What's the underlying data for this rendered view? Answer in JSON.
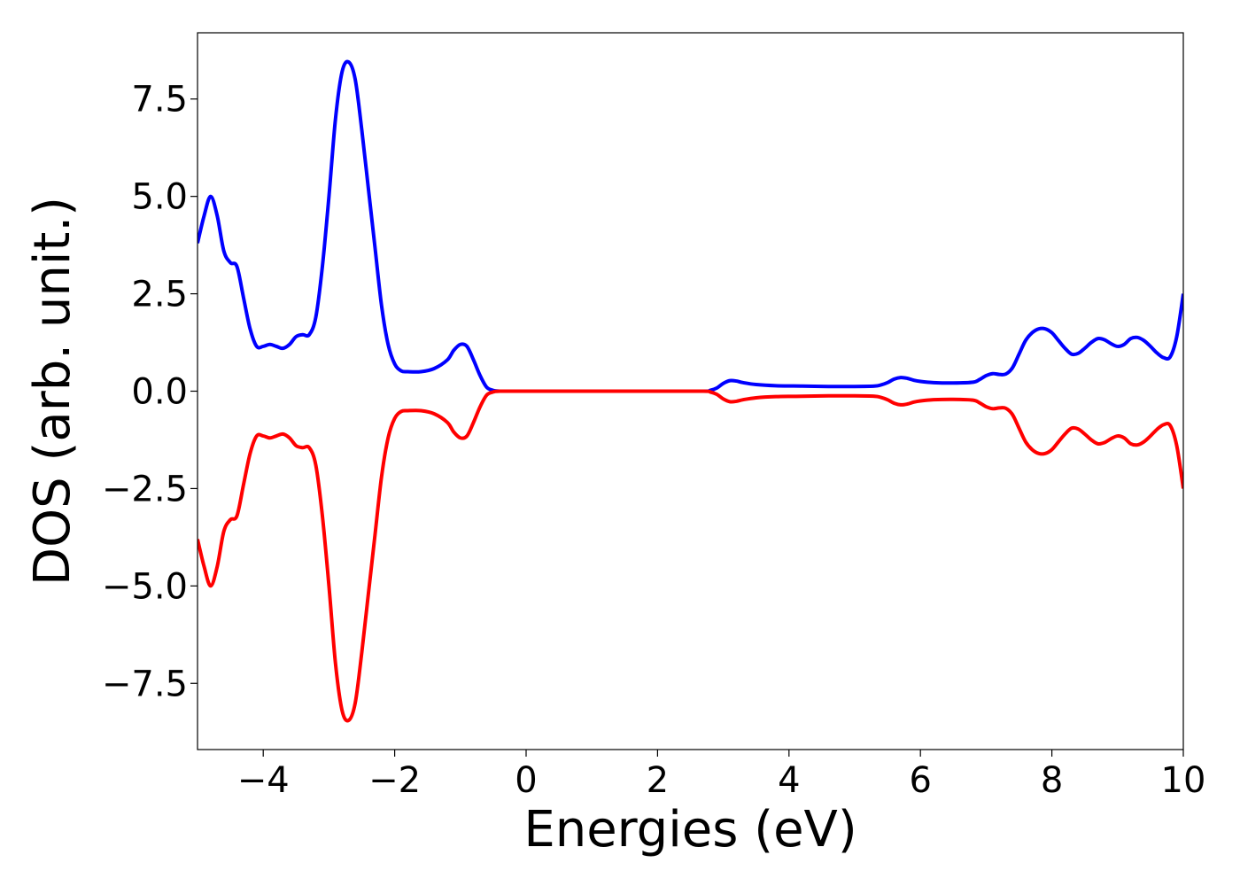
{
  "chart_data": {
    "type": "line",
    "title": "",
    "xlabel": "Energies (eV)",
    "ylabel": "DOS (arb. unit.)",
    "xlim": [
      -5,
      10
    ],
    "ylim": [
      -9.2,
      9.2
    ],
    "xticks": [
      -4,
      -2,
      0,
      2,
      4,
      6,
      8,
      10
    ],
    "xtick_labels": [
      "−4",
      "−2",
      "0",
      "2",
      "4",
      "6",
      "8",
      "10"
    ],
    "yticks": [
      -7.5,
      -5.0,
      -2.5,
      0.0,
      2.5,
      5.0,
      7.5
    ],
    "ytick_labels": [
      "−7.5",
      "−5.0",
      "−2.5",
      "0.0",
      "2.5",
      "5.0",
      "7.5"
    ],
    "grid": false,
    "legend": "none",
    "series": [
      {
        "color": "#0000ff",
        "points": [
          [
            -5.0,
            3.8
          ],
          [
            -4.9,
            4.5
          ],
          [
            -4.8,
            5.0
          ],
          [
            -4.7,
            4.5
          ],
          [
            -4.6,
            3.6
          ],
          [
            -4.5,
            3.3
          ],
          [
            -4.4,
            3.2
          ],
          [
            -4.3,
            2.4
          ],
          [
            -4.2,
            1.6
          ],
          [
            -4.1,
            1.15
          ],
          [
            -4.0,
            1.15
          ],
          [
            -3.9,
            1.2
          ],
          [
            -3.8,
            1.15
          ],
          [
            -3.7,
            1.1
          ],
          [
            -3.6,
            1.2
          ],
          [
            -3.5,
            1.4
          ],
          [
            -3.4,
            1.45
          ],
          [
            -3.3,
            1.45
          ],
          [
            -3.2,
            1.9
          ],
          [
            -3.1,
            3.2
          ],
          [
            -3.0,
            5.0
          ],
          [
            -2.9,
            7.0
          ],
          [
            -2.8,
            8.2
          ],
          [
            -2.7,
            8.45
          ],
          [
            -2.6,
            8.0
          ],
          [
            -2.5,
            6.7
          ],
          [
            -2.4,
            5.2
          ],
          [
            -2.3,
            3.7
          ],
          [
            -2.2,
            2.2
          ],
          [
            -2.1,
            1.2
          ],
          [
            -2.0,
            0.7
          ],
          [
            -1.9,
            0.52
          ],
          [
            -1.8,
            0.5
          ],
          [
            -1.6,
            0.5
          ],
          [
            -1.4,
            0.58
          ],
          [
            -1.2,
            0.8
          ],
          [
            -1.1,
            1.05
          ],
          [
            -1.0,
            1.2
          ],
          [
            -0.9,
            1.15
          ],
          [
            -0.8,
            0.8
          ],
          [
            -0.7,
            0.4
          ],
          [
            -0.6,
            0.1
          ],
          [
            -0.5,
            0.02
          ],
          [
            -0.4,
            0.0
          ],
          [
            0.0,
            0.0
          ],
          [
            1.0,
            0.0
          ],
          [
            2.0,
            0.0
          ],
          [
            2.7,
            0.0
          ],
          [
            2.8,
            0.02
          ],
          [
            2.9,
            0.08
          ],
          [
            3.0,
            0.2
          ],
          [
            3.1,
            0.27
          ],
          [
            3.2,
            0.26
          ],
          [
            3.3,
            0.22
          ],
          [
            3.5,
            0.17
          ],
          [
            3.8,
            0.14
          ],
          [
            4.2,
            0.13
          ],
          [
            4.6,
            0.12
          ],
          [
            5.0,
            0.12
          ],
          [
            5.3,
            0.13
          ],
          [
            5.4,
            0.16
          ],
          [
            5.5,
            0.22
          ],
          [
            5.6,
            0.31
          ],
          [
            5.7,
            0.35
          ],
          [
            5.8,
            0.33
          ],
          [
            5.9,
            0.28
          ],
          [
            6.0,
            0.25
          ],
          [
            6.2,
            0.22
          ],
          [
            6.5,
            0.21
          ],
          [
            6.8,
            0.23
          ],
          [
            6.9,
            0.3
          ],
          [
            7.0,
            0.4
          ],
          [
            7.1,
            0.45
          ],
          [
            7.2,
            0.43
          ],
          [
            7.3,
            0.44
          ],
          [
            7.4,
            0.6
          ],
          [
            7.5,
            0.95
          ],
          [
            7.6,
            1.3
          ],
          [
            7.7,
            1.5
          ],
          [
            7.8,
            1.6
          ],
          [
            7.9,
            1.6
          ],
          [
            8.0,
            1.5
          ],
          [
            8.1,
            1.3
          ],
          [
            8.2,
            1.1
          ],
          [
            8.3,
            0.95
          ],
          [
            8.4,
            0.97
          ],
          [
            8.5,
            1.1
          ],
          [
            8.6,
            1.25
          ],
          [
            8.7,
            1.35
          ],
          [
            8.8,
            1.32
          ],
          [
            8.9,
            1.22
          ],
          [
            9.0,
            1.15
          ],
          [
            9.1,
            1.2
          ],
          [
            9.2,
            1.35
          ],
          [
            9.3,
            1.38
          ],
          [
            9.4,
            1.3
          ],
          [
            9.5,
            1.15
          ],
          [
            9.6,
            0.98
          ],
          [
            9.7,
            0.86
          ],
          [
            9.8,
            0.88
          ],
          [
            9.9,
            1.4
          ],
          [
            10.0,
            2.5
          ]
        ]
      },
      {
        "color": "#ff0000",
        "points": [
          [
            -5.0,
            -3.8
          ],
          [
            -4.9,
            -4.5
          ],
          [
            -4.8,
            -5.0
          ],
          [
            -4.7,
            -4.5
          ],
          [
            -4.6,
            -3.6
          ],
          [
            -4.5,
            -3.3
          ],
          [
            -4.4,
            -3.2
          ],
          [
            -4.3,
            -2.4
          ],
          [
            -4.2,
            -1.6
          ],
          [
            -4.1,
            -1.15
          ],
          [
            -4.0,
            -1.15
          ],
          [
            -3.9,
            -1.2
          ],
          [
            -3.8,
            -1.15
          ],
          [
            -3.7,
            -1.1
          ],
          [
            -3.6,
            -1.2
          ],
          [
            -3.5,
            -1.4
          ],
          [
            -3.4,
            -1.45
          ],
          [
            -3.3,
            -1.45
          ],
          [
            -3.2,
            -1.9
          ],
          [
            -3.1,
            -3.2
          ],
          [
            -3.0,
            -5.0
          ],
          [
            -2.9,
            -7.0
          ],
          [
            -2.8,
            -8.2
          ],
          [
            -2.7,
            -8.45
          ],
          [
            -2.6,
            -8.0
          ],
          [
            -2.5,
            -6.7
          ],
          [
            -2.4,
            -5.2
          ],
          [
            -2.3,
            -3.7
          ],
          [
            -2.2,
            -2.2
          ],
          [
            -2.1,
            -1.2
          ],
          [
            -2.0,
            -0.7
          ],
          [
            -1.9,
            -0.52
          ],
          [
            -1.8,
            -0.5
          ],
          [
            -1.6,
            -0.5
          ],
          [
            -1.4,
            -0.58
          ],
          [
            -1.2,
            -0.8
          ],
          [
            -1.1,
            -1.05
          ],
          [
            -1.0,
            -1.2
          ],
          [
            -0.9,
            -1.15
          ],
          [
            -0.8,
            -0.8
          ],
          [
            -0.7,
            -0.4
          ],
          [
            -0.6,
            -0.1
          ],
          [
            -0.5,
            -0.02
          ],
          [
            -0.4,
            0.0
          ],
          [
            0.0,
            0.0
          ],
          [
            1.0,
            0.0
          ],
          [
            2.0,
            0.0
          ],
          [
            2.7,
            0.0
          ],
          [
            2.8,
            -0.02
          ],
          [
            2.9,
            -0.08
          ],
          [
            3.0,
            -0.2
          ],
          [
            3.1,
            -0.27
          ],
          [
            3.2,
            -0.26
          ],
          [
            3.3,
            -0.22
          ],
          [
            3.5,
            -0.17
          ],
          [
            3.8,
            -0.14
          ],
          [
            4.2,
            -0.13
          ],
          [
            4.6,
            -0.12
          ],
          [
            5.0,
            -0.12
          ],
          [
            5.3,
            -0.13
          ],
          [
            5.4,
            -0.16
          ],
          [
            5.5,
            -0.22
          ],
          [
            5.6,
            -0.31
          ],
          [
            5.7,
            -0.35
          ],
          [
            5.8,
            -0.33
          ],
          [
            5.9,
            -0.28
          ],
          [
            6.0,
            -0.25
          ],
          [
            6.2,
            -0.22
          ],
          [
            6.5,
            -0.21
          ],
          [
            6.8,
            -0.23
          ],
          [
            6.9,
            -0.3
          ],
          [
            7.0,
            -0.4
          ],
          [
            7.1,
            -0.45
          ],
          [
            7.2,
            -0.43
          ],
          [
            7.3,
            -0.44
          ],
          [
            7.4,
            -0.6
          ],
          [
            7.5,
            -0.95
          ],
          [
            7.6,
            -1.3
          ],
          [
            7.7,
            -1.5
          ],
          [
            7.8,
            -1.6
          ],
          [
            7.9,
            -1.6
          ],
          [
            8.0,
            -1.5
          ],
          [
            8.1,
            -1.3
          ],
          [
            8.2,
            -1.1
          ],
          [
            8.3,
            -0.95
          ],
          [
            8.4,
            -0.97
          ],
          [
            8.5,
            -1.1
          ],
          [
            8.6,
            -1.25
          ],
          [
            8.7,
            -1.35
          ],
          [
            8.8,
            -1.32
          ],
          [
            8.9,
            -1.22
          ],
          [
            9.0,
            -1.15
          ],
          [
            9.1,
            -1.2
          ],
          [
            9.2,
            -1.35
          ],
          [
            9.3,
            -1.38
          ],
          [
            9.4,
            -1.3
          ],
          [
            9.5,
            -1.15
          ],
          [
            9.6,
            -0.98
          ],
          [
            9.7,
            -0.86
          ],
          [
            9.8,
            -0.88
          ],
          [
            9.9,
            -1.4
          ],
          [
            10.0,
            -2.5
          ]
        ]
      }
    ]
  }
}
